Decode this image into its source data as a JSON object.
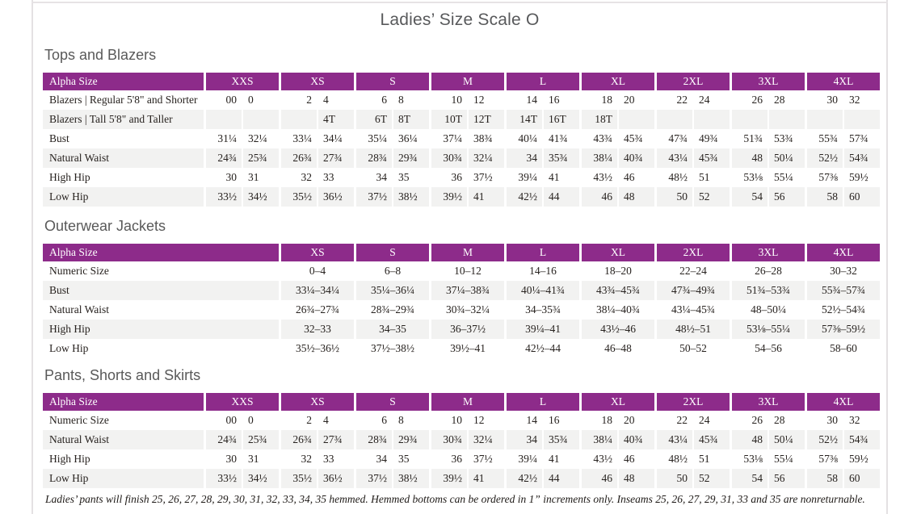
{
  "page": {
    "title": "Ladies’ Size Scale O",
    "footnote": "Ladies’ pants will finish 25, 26, 27, 28, 29, 30, 31, 32, 33, 34, 35 hemmed. Hemmed bottoms can be ordered in 1” increments only. Inseams 25, 26, 27, 29, 31, 33 and 35 are nonreturnable."
  },
  "colors": {
    "header_purple": "#8d2b8a",
    "row_shade": "#f2f2f1",
    "heading_gray": "#595959",
    "title_gray": "#58595b"
  },
  "sections": [
    {
      "heading": "Tops and Blazers",
      "table": {
        "label_header": "Alpha Size",
        "paired": true,
        "sizes": [
          "XXS",
          "XS",
          "S",
          "M",
          "L",
          "XL",
          "2XL",
          "3XL",
          "4XL"
        ],
        "rows": [
          {
            "label": "Blazers | Regular 5'8\" and Shorter",
            "cells": [
              [
                "00",
                "0"
              ],
              [
                "2",
                "4"
              ],
              [
                "6",
                "8"
              ],
              [
                "10",
                "12"
              ],
              [
                "14",
                "16"
              ],
              [
                "18",
                "20"
              ],
              [
                "22",
                "24"
              ],
              [
                "26",
                "28"
              ],
              [
                "30",
                "32"
              ]
            ]
          },
          {
            "label": "Blazers | Tall 5'8\" and Taller",
            "cells": [
              [
                "",
                ""
              ],
              [
                "",
                "4T"
              ],
              [
                "6T",
                "8T"
              ],
              [
                "10T",
                "12T"
              ],
              [
                "14T",
                "16T"
              ],
              [
                "18T",
                ""
              ],
              [
                "",
                ""
              ],
              [
                "",
                ""
              ],
              [
                "",
                ""
              ]
            ]
          },
          {
            "label": "Bust",
            "cells": [
              [
                "31¼",
                "32¼"
              ],
              [
                "33¼",
                "34¼"
              ],
              [
                "35¼",
                "36¼"
              ],
              [
                "37¼",
                "38¾"
              ],
              [
                "40¼",
                "41¾"
              ],
              [
                "43¾",
                "45¾"
              ],
              [
                "47¾",
                "49¾"
              ],
              [
                "51¾",
                "53¾"
              ],
              [
                "55¾",
                "57¾"
              ]
            ]
          },
          {
            "label": "Natural Waist",
            "cells": [
              [
                "24¾",
                "25¾"
              ],
              [
                "26¾",
                "27¾"
              ],
              [
                "28¾",
                "29¾"
              ],
              [
                "30¾",
                "32¼"
              ],
              [
                "34",
                "35¾"
              ],
              [
                "38¼",
                "40¾"
              ],
              [
                "43¼",
                "45¾"
              ],
              [
                "48",
                "50¼"
              ],
              [
                "52½",
                "54¾"
              ]
            ]
          },
          {
            "label": "High Hip",
            "cells": [
              [
                "30",
                "31"
              ],
              [
                "32",
                "33"
              ],
              [
                "34",
                "35"
              ],
              [
                "36",
                "37½"
              ],
              [
                "39¼",
                "41"
              ],
              [
                "43½",
                "46"
              ],
              [
                "48½",
                "51"
              ],
              [
                "53⅛",
                "55¼"
              ],
              [
                "57⅜",
                "59½"
              ]
            ]
          },
          {
            "label": "Low Hip",
            "cells": [
              [
                "33½",
                "34½"
              ],
              [
                "35½",
                "36½"
              ],
              [
                "37½",
                "38½"
              ],
              [
                "39½",
                "41"
              ],
              [
                "42½",
                "44"
              ],
              [
                "46",
                "48"
              ],
              [
                "50",
                "52"
              ],
              [
                "54",
                "56"
              ],
              [
                "58",
                "60"
              ]
            ]
          }
        ]
      }
    },
    {
      "heading": "Outerwear Jackets",
      "table": {
        "label_header": "Alpha Size",
        "paired": false,
        "sizes": [
          "XS",
          "S",
          "M",
          "L",
          "XL",
          "2XL",
          "3XL",
          "4XL"
        ],
        "rows": [
          {
            "label": "Numeric Size",
            "cells": [
              "0–4",
              "6–8",
              "10–12",
              "14–16",
              "18–20",
              "22–24",
              "26–28",
              "30–32"
            ]
          },
          {
            "label": "Bust",
            "cells": [
              "33¼–34¼",
              "35¼–36¼",
              "37¼–38¾",
              "40¼–41¾",
              "43¾–45¾",
              "47¾–49¾",
              "51¾–53¾",
              "55¾–57¾"
            ]
          },
          {
            "label": "Natural Waist",
            "cells": [
              "26¾–27¾",
              "28¾–29¾",
              "30¾–32¼",
              "34–35¾",
              "38¼–40¾",
              "43¼–45¾",
              "48–50¼",
              "52½–54¾"
            ]
          },
          {
            "label": "High Hip",
            "cells": [
              "32–33",
              "34–35",
              "36–37½",
              "39¼–41",
              "43½–46",
              "48½–51",
              "53⅛–55¼",
              "57⅜–59½"
            ]
          },
          {
            "label": "Low Hip",
            "cells": [
              "35½–36½",
              "37½–38½",
              "39½–41",
              "42½–44",
              "46–48",
              "50–52",
              "54–56",
              "58–60"
            ]
          }
        ]
      }
    },
    {
      "heading": "Pants, Shorts and Skirts",
      "table": {
        "label_header": "Alpha Size",
        "paired": true,
        "sizes": [
          "XXS",
          "XS",
          "S",
          "M",
          "L",
          "XL",
          "2XL",
          "3XL",
          "4XL"
        ],
        "rows": [
          {
            "label": "Numeric Size",
            "cells": [
              [
                "00",
                "0"
              ],
              [
                "2",
                "4"
              ],
              [
                "6",
                "8"
              ],
              [
                "10",
                "12"
              ],
              [
                "14",
                "16"
              ],
              [
                "18",
                "20"
              ],
              [
                "22",
                "24"
              ],
              [
                "26",
                "28"
              ],
              [
                "30",
                "32"
              ]
            ]
          },
          {
            "label": "Natural Waist",
            "cells": [
              [
                "24¾",
                "25¾"
              ],
              [
                "26¾",
                "27¾"
              ],
              [
                "28¾",
                "29¾"
              ],
              [
                "30¾",
                "32¼"
              ],
              [
                "34",
                "35¾"
              ],
              [
                "38¼",
                "40¾"
              ],
              [
                "43¼",
                "45¾"
              ],
              [
                "48",
                "50¼"
              ],
              [
                "52½",
                "54¾"
              ]
            ]
          },
          {
            "label": "High Hip",
            "cells": [
              [
                "30",
                "31"
              ],
              [
                "32",
                "33"
              ],
              [
                "34",
                "35"
              ],
              [
                "36",
                "37½"
              ],
              [
                "39¼",
                "41"
              ],
              [
                "43½",
                "46"
              ],
              [
                "48½",
                "51"
              ],
              [
                "53⅛",
                "55¼"
              ],
              [
                "57⅜",
                "59½"
              ]
            ]
          },
          {
            "label": "Low Hip",
            "cells": [
              [
                "33½",
                "34½"
              ],
              [
                "35½",
                "36½"
              ],
              [
                "37½",
                "38½"
              ],
              [
                "39½",
                "41"
              ],
              [
                "42½",
                "44"
              ],
              [
                "46",
                "48"
              ],
              [
                "50",
                "52"
              ],
              [
                "54",
                "56"
              ],
              [
                "58",
                "60"
              ]
            ]
          }
        ]
      }
    }
  ]
}
